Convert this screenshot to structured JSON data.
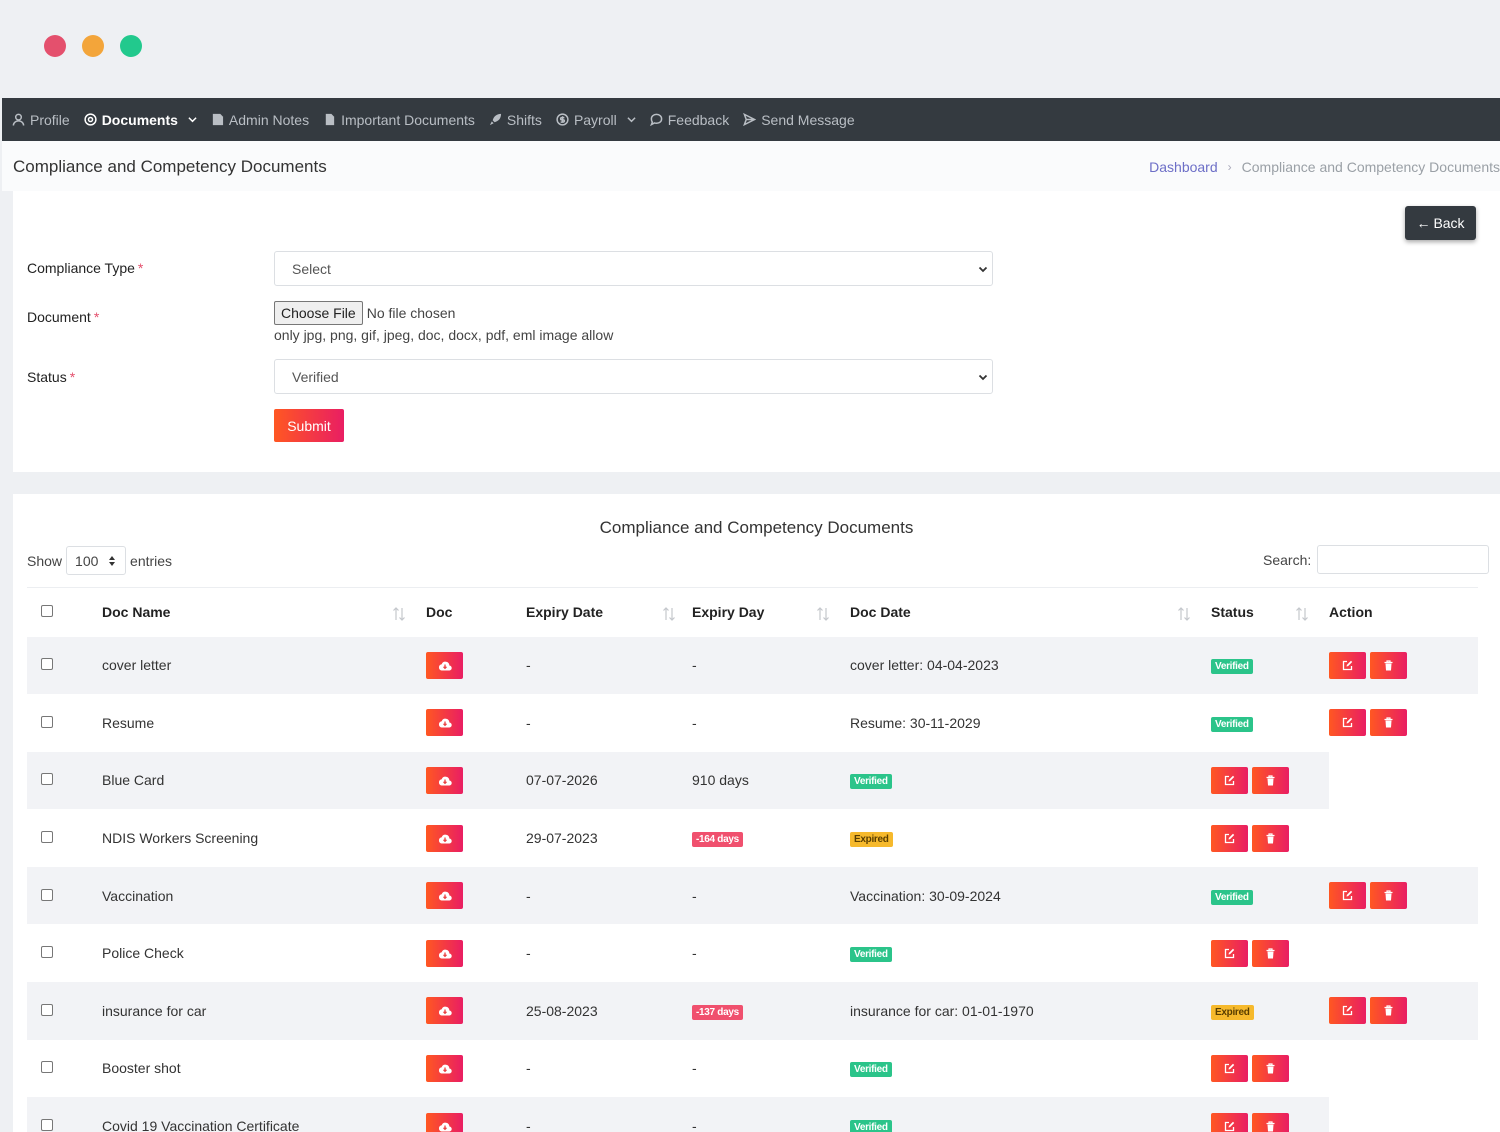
{
  "nav": {
    "items": [
      {
        "label": "Profile",
        "icon": "user-icon"
      },
      {
        "label": "Documents",
        "icon": "circle-icon",
        "active": true,
        "dropdown": true
      },
      {
        "label": "Admin Notes",
        "icon": "note-icon"
      },
      {
        "label": "Important Documents",
        "icon": "file-icon"
      },
      {
        "label": "Shifts",
        "icon": "rocket-icon"
      },
      {
        "label": "Payroll",
        "icon": "dollar-icon",
        "dropdown": true
      },
      {
        "label": "Feedback",
        "icon": "chat-icon"
      },
      {
        "label": "Send Message",
        "icon": "send-icon"
      }
    ]
  },
  "header": {
    "title": "Compliance and Competency Documents",
    "breadcrumb_home": "Dashboard",
    "breadcrumb_sep": "›",
    "breadcrumb_current": "Compliance and Competency Documents"
  },
  "form": {
    "back_label": "Back",
    "compliance_type_label": "Compliance Type",
    "compliance_type_value": "Select",
    "document_label": "Document",
    "file_button": "Choose File",
    "file_status": "No file chosen",
    "file_hint": "only jpg, png, gif, jpeg, doc, docx, pdf, eml image allow",
    "status_label": "Status",
    "status_value": "Verified",
    "submit_label": "Submit",
    "required_mark": "*"
  },
  "table": {
    "title": "Compliance and Competency Documents",
    "show_label": "Show",
    "entries_value": "100",
    "entries_label": "entries",
    "search_label": "Search:",
    "columns": {
      "doc_name": "Doc Name",
      "doc": "Doc",
      "expiry_date": "Expiry Date",
      "expiry_day": "Expiry Day",
      "doc_date": "Doc Date",
      "status": "Status",
      "action": "Action"
    },
    "rows": [
      {
        "name": "cover letter",
        "expiry_date": "-",
        "expiry_day": "-",
        "expiry_badge": "",
        "doc_date": "cover letter: 04-04-2023",
        "status": "Verified"
      },
      {
        "name": "Resume",
        "expiry_date": "-",
        "expiry_day": "-",
        "expiry_badge": "",
        "doc_date": "Resume: 30-11-2029",
        "status": "Verified"
      },
      {
        "name": "Blue Card",
        "expiry_date": "07-07-2026",
        "expiry_day": "910 days",
        "expiry_badge": "",
        "doc_date": "",
        "status": "Verified"
      },
      {
        "name": "NDIS Workers Screening",
        "expiry_date": "29-07-2023",
        "expiry_day": "",
        "expiry_badge": "-164 days",
        "doc_date": "",
        "status": "Expired"
      },
      {
        "name": "Vaccination",
        "expiry_date": "-",
        "expiry_day": "-",
        "expiry_badge": "",
        "doc_date": "Vaccination: 30-09-2024",
        "status": "Verified"
      },
      {
        "name": "Police Check",
        "expiry_date": "-",
        "expiry_day": "-",
        "expiry_badge": "",
        "doc_date": "",
        "status": "Verified"
      },
      {
        "name": "insurance for car",
        "expiry_date": "25-08-2023",
        "expiry_day": "",
        "expiry_badge": "-137 days",
        "doc_date": "insurance for car: 01-01-1970",
        "status": "Expired"
      },
      {
        "name": "Booster shot",
        "expiry_date": "-",
        "expiry_day": "-",
        "expiry_badge": "",
        "doc_date": "",
        "status": "Verified"
      },
      {
        "name": "Covid 19 Vaccination Certificate",
        "expiry_date": "-",
        "expiry_day": "-",
        "expiry_badge": "",
        "doc_date": "",
        "status": "Verified"
      }
    ]
  },
  "colors": {
    "navbar": "#343a40",
    "accent_gradient_start": "#ff5722",
    "accent_gradient_end": "#e91e63",
    "verified": "#2bc48a",
    "expired": "#f6b92c",
    "link": "#6d6fc7"
  }
}
